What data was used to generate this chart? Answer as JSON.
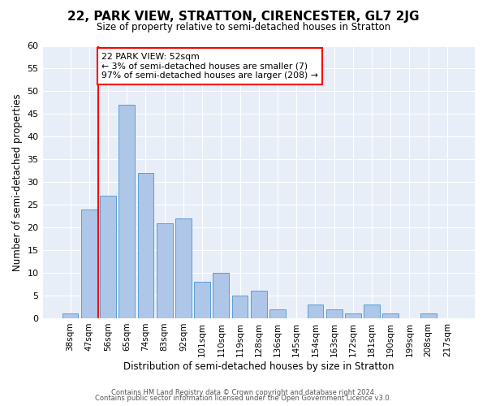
{
  "title": "22, PARK VIEW, STRATTON, CIRENCESTER, GL7 2JG",
  "subtitle": "Size of property relative to semi-detached houses in Stratton",
  "xlabel": "Distribution of semi-detached houses by size in Stratton",
  "ylabel": "Number of semi-detached properties",
  "footer1": "Contains HM Land Registry data © Crown copyright and database right 2024.",
  "footer2": "Contains public sector information licensed under the Open Government Licence v3.0.",
  "categories": [
    "38sqm",
    "47sqm",
    "56sqm",
    "65sqm",
    "74sqm",
    "83sqm",
    "92sqm",
    "101sqm",
    "110sqm",
    "119sqm",
    "128sqm",
    "136sqm",
    "145sqm",
    "154sqm",
    "163sqm",
    "172sqm",
    "181sqm",
    "190sqm",
    "199sqm",
    "208sqm",
    "217sqm"
  ],
  "values": [
    1,
    24,
    27,
    47,
    32,
    21,
    22,
    8,
    10,
    5,
    6,
    2,
    0,
    3,
    2,
    1,
    3,
    1,
    0,
    1,
    0
  ],
  "bar_color": "#aec6e8",
  "bar_edge_color": "#5a9fd4",
  "annotation_text": "22 PARK VIEW: 52sqm\n← 3% of semi-detached houses are smaller (7)\n97% of semi-detached houses are larger (208) →",
  "annotation_box_color": "white",
  "annotation_box_edge_color": "red",
  "vline_x_index": 1.5,
  "vline_color": "red",
  "ylim": [
    0,
    60
  ],
  "yticks": [
    0,
    5,
    10,
    15,
    20,
    25,
    30,
    35,
    40,
    45,
    50,
    55,
    60
  ],
  "plot_bg_color": "#e8eef7",
  "grid_color": "white"
}
